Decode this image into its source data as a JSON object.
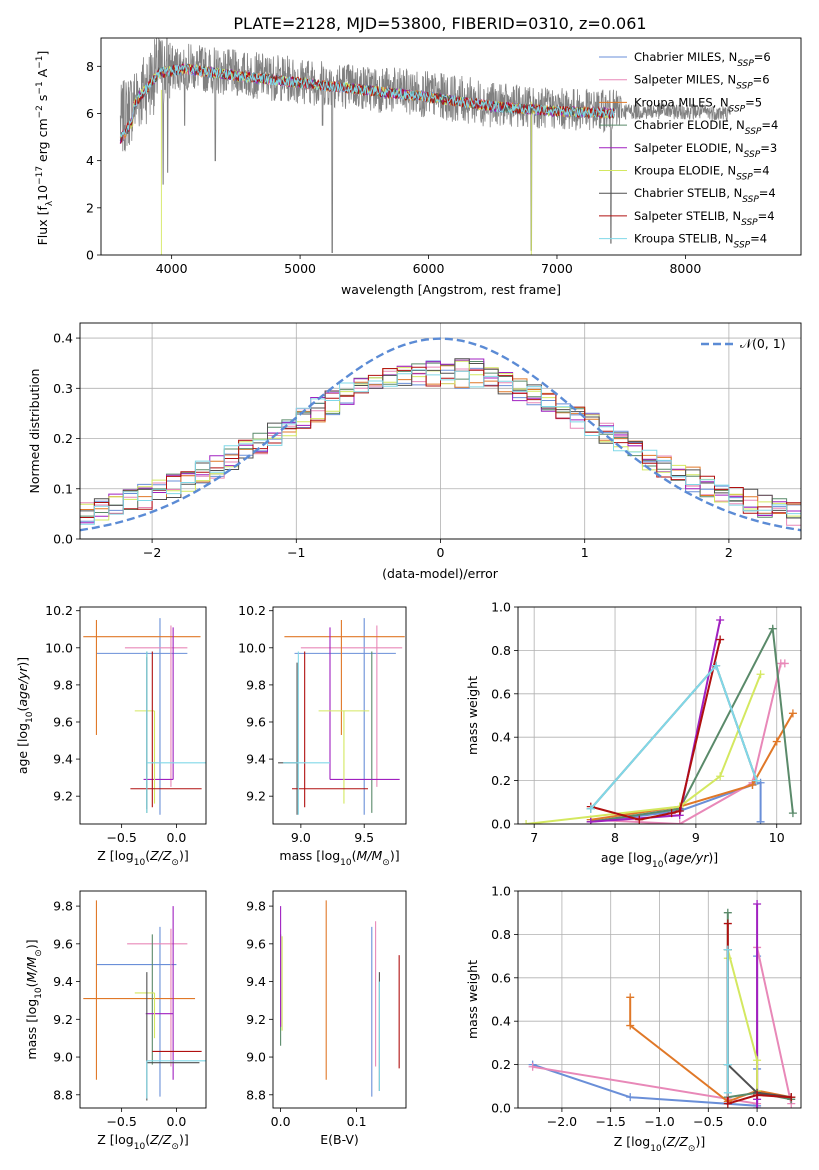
{
  "colors": {
    "Chabrier MILES": "#6a8fd8",
    "Salpeter MILES": "#e888b8",
    "Kroupa MILES": "#e07828",
    "Chabrier ELODIE": "#5a8a6a",
    "Salpeter ELODIE": "#a020c0",
    "Kroupa ELODIE": "#d4e860",
    "Chabrier STELIB": "#505050",
    "Salpeter STELIB": "#b01010",
    "Kroupa STELIB": "#80d8e8",
    "data": "#808080",
    "normal": "#5b8bd5"
  },
  "title": "PLATE=2128, MJD=53800, FIBERID=0310, z=0.061",
  "chart_data": [
    {
      "id": "spectrum",
      "type": "line",
      "xlabel": "wavelength [Angstrom, rest frame]",
      "ylabel": "Flux [f",
      "xlim": [
        3450,
        8900
      ],
      "ylim": [
        0,
        9.2
      ],
      "xticks": [
        4000,
        5000,
        6000,
        7000,
        8000
      ],
      "yticks": [
        0,
        2,
        4,
        6,
        8
      ],
      "data_range": [
        3600,
        8350
      ],
      "model_range": [
        3600,
        7450
      ],
      "continuum": [
        [
          3600,
          5.6
        ],
        [
          3750,
          6.8
        ],
        [
          3900,
          7.8
        ],
        [
          4100,
          8.0
        ],
        [
          4500,
          7.7
        ],
        [
          5000,
          7.4
        ],
        [
          5500,
          7.1
        ],
        [
          6000,
          6.8
        ],
        [
          6500,
          6.4
        ],
        [
          7000,
          6.2
        ],
        [
          7500,
          6.1
        ],
        [
          8000,
          6.1
        ],
        [
          8350,
          6.0
        ]
      ],
      "absorption_features": [
        [
          3934,
          3.0
        ],
        [
          3968,
          3.5
        ],
        [
          4102,
          5.5
        ],
        [
          4340,
          4.0
        ],
        [
          5175,
          5.5
        ],
        [
          5250,
          0.1
        ],
        [
          6800,
          0.2
        ],
        [
          7420,
          0.5
        ]
      ],
      "legend": [
        {
          "name": "Chabrier MILES",
          "nssp": "6"
        },
        {
          "name": "Salpeter MILES",
          "nssp": "6"
        },
        {
          "name": "Kroupa MILES",
          "nssp": "5"
        },
        {
          "name": "Chabrier ELODIE",
          "nssp": "4"
        },
        {
          "name": "Salpeter ELODIE",
          "nssp": "3"
        },
        {
          "name": "Kroupa ELODIE",
          "nssp": "4"
        },
        {
          "name": "Chabrier STELIB",
          "nssp": "4"
        },
        {
          "name": "Salpeter STELIB",
          "nssp": "4"
        },
        {
          "name": "Kroupa STELIB",
          "nssp": "4"
        }
      ]
    },
    {
      "id": "residuals",
      "type": "histogram",
      "xlabel": "(data-model)/error",
      "ylabel": "Normed distribution",
      "xlim": [
        -2.5,
        2.5
      ],
      "ylim": [
        0,
        0.43
      ],
      "xticks": [
        -2,
        -1,
        0,
        1,
        2
      ],
      "yticks": [
        0.0,
        0.1,
        0.2,
        0.3,
        0.4
      ],
      "legend": "𝒩(0, 1)",
      "grid": true
    },
    {
      "id": "age_vs_Z",
      "type": "errorbar",
      "xlabel": "Z [log",
      "ylabel": "age  [log",
      "xlim": [
        -0.88,
        0.27
      ],
      "ylim": [
        9.05,
        10.22
      ],
      "xticks": [
        -0.5,
        0.0
      ],
      "yticks": [
        9.2,
        9.4,
        9.6,
        9.8,
        10.0,
        10.2
      ],
      "points": [
        {
          "model": "Chabrier MILES",
          "x": -0.15,
          "xerr": [
            0.58,
            0.25
          ],
          "y": 9.97,
          "yerr": [
            0.87,
            0.19
          ]
        },
        {
          "model": "Salpeter MILES",
          "x": -0.05,
          "xerr": [
            0.42,
            0.15
          ],
          "y": 10.0,
          "yerr": [
            0.75,
            0.12
          ]
        },
        {
          "model": "Kroupa MILES",
          "x": -0.73,
          "xerr": [
            0.12,
            0.95
          ],
          "y": 10.06,
          "yerr": [
            0.53,
            0.09
          ]
        },
        {
          "model": "Chabrier ELODIE",
          "x": -0.27,
          "xerr": [
            0.0,
            0.0
          ],
          "y": 9.38,
          "yerr": [
            0.27,
            0.6
          ]
        },
        {
          "model": "Salpeter ELODIE",
          "x": -0.03,
          "xerr": [
            0.27,
            0.0
          ],
          "y": 9.29,
          "yerr": [
            0.0,
            0.82
          ]
        },
        {
          "model": "Kroupa ELODIE",
          "x": -0.2,
          "xerr": [
            0.18,
            0.0
          ],
          "y": 9.66,
          "yerr": [
            0.5,
            0.0
          ]
        },
        {
          "model": "Chabrier STELIB",
          "x": -0.27,
          "xerr": [
            0.0,
            0.0
          ],
          "y": 9.38,
          "yerr": [
            0.25,
            0.57
          ]
        },
        {
          "model": "Salpeter STELIB",
          "x": -0.22,
          "xerr": [
            0.2,
            0.45
          ],
          "y": 9.24,
          "yerr": [
            0.1,
            0.74
          ]
        },
        {
          "model": "Kroupa STELIB",
          "x": -0.27,
          "xerr": [
            0.0,
            0.55
          ],
          "y": 9.38,
          "yerr": [
            0.27,
            0.6
          ]
        }
      ]
    },
    {
      "id": "age_vs_mass",
      "type": "errorbar",
      "xlabel": "mass [log",
      "ylabel": "",
      "xlim": [
        8.78,
        9.83
      ],
      "ylim": [
        9.05,
        10.22
      ],
      "xticks": [
        9.0,
        9.5
      ],
      "yticks": [
        9.2,
        9.4,
        9.6,
        9.8,
        10.0,
        10.2
      ],
      "points": [
        {
          "model": "Chabrier MILES",
          "x": 9.5,
          "xerr": [
            0.55,
            0.25
          ],
          "y": 9.97,
          "yerr": [
            0.87,
            0.19
          ]
        },
        {
          "model": "Salpeter MILES",
          "x": 9.6,
          "xerr": [
            0.6,
            0.2
          ],
          "y": 10.0,
          "yerr": [
            0.75,
            0.12
          ]
        },
        {
          "model": "Kroupa MILES",
          "x": 9.32,
          "xerr": [
            0.45,
            0.5
          ],
          "y": 10.06,
          "yerr": [
            0.53,
            0.09
          ]
        },
        {
          "model": "Chabrier ELODIE",
          "x": 9.56,
          "xerr": [
            0.0,
            0.0
          ],
          "y": 9.38,
          "yerr": [
            0.27,
            0.6
          ]
        },
        {
          "model": "Salpeter ELODIE",
          "x": 9.23,
          "xerr": [
            0.0,
            0.55
          ],
          "y": 9.29,
          "yerr": [
            0.0,
            0.82
          ]
        },
        {
          "model": "Kroupa ELODIE",
          "x": 9.34,
          "xerr": [
            0.2,
            0.2
          ],
          "y": 9.66,
          "yerr": [
            0.5,
            0.0
          ]
        },
        {
          "model": "Chabrier STELIB",
          "x": 8.97,
          "xerr": [
            0.15,
            0.0
          ],
          "y": 9.38,
          "yerr": [
            0.28,
            0.54
          ]
        },
        {
          "model": "Salpeter STELIB",
          "x": 9.03,
          "xerr": [
            0.1,
            0.5
          ],
          "y": 9.24,
          "yerr": [
            0.1,
            0.74
          ]
        },
        {
          "model": "Kroupa STELIB",
          "x": 8.98,
          "xerr": [
            0.12,
            0.25
          ],
          "y": 9.38,
          "yerr": [
            0.28,
            0.6
          ]
        }
      ]
    },
    {
      "id": "weight_vs_age",
      "type": "line",
      "xlabel": "age  [log",
      "ylabel": "mass weight",
      "xlim": [
        6.8,
        10.3
      ],
      "ylim": [
        0,
        1.0
      ],
      "xticks": [
        7,
        8,
        9,
        10
      ],
      "yticks": [
        0.0,
        0.2,
        0.4,
        0.6,
        0.8,
        1.0
      ],
      "grid": true,
      "series": [
        {
          "model": "Chabrier MILES",
          "x": [
            7.7,
            8.8,
            9.7,
            9.8,
            9.8
          ],
          "y": [
            0.01,
            0.06,
            0.18,
            0.19,
            0.01
          ]
        },
        {
          "model": "Salpeter MILES",
          "x": [
            7.7,
            8.8,
            9.7,
            10.05,
            10.1
          ],
          "y": [
            0.02,
            0.0,
            0.19,
            0.74,
            0.74
          ]
        },
        {
          "model": "Kroupa MILES",
          "x": [
            7.7,
            8.8,
            9.7,
            10.0,
            10.2
          ],
          "y": [
            0.02,
            0.08,
            0.18,
            0.38,
            0.51
          ]
        },
        {
          "model": "Chabrier ELODIE",
          "x": [
            7.7,
            8.8,
            9.95,
            10.2
          ],
          "y": [
            0.01,
            0.07,
            0.9,
            0.05
          ]
        },
        {
          "model": "Salpeter ELODIE",
          "x": [
            7.7,
            8.8,
            9.3
          ],
          "y": [
            0.01,
            0.04,
            0.94
          ]
        },
        {
          "model": "Kroupa ELODIE",
          "x": [
            6.9,
            8.8,
            9.3,
            9.8
          ],
          "y": [
            0.0,
            0.08,
            0.22,
            0.69
          ]
        },
        {
          "model": "Chabrier STELIB",
          "x": [
            7.7,
            9.25,
            9.75
          ],
          "y": [
            0.07,
            0.73,
            0.2
          ]
        },
        {
          "model": "Salpeter STELIB",
          "x": [
            7.7,
            8.3,
            8.7,
            8.8,
            9.3
          ],
          "y": [
            0.08,
            0.02,
            0.05,
            0.06,
            0.85
          ]
        },
        {
          "model": "Kroupa STELIB",
          "x": [
            7.7,
            9.25,
            9.75
          ],
          "y": [
            0.07,
            0.73,
            0.2
          ]
        }
      ]
    },
    {
      "id": "mass_vs_Z",
      "type": "errorbar",
      "xlabel": "Z [log",
      "ylabel": "mass [log",
      "xlim": [
        -0.88,
        0.27
      ],
      "ylim": [
        8.73,
        9.88
      ],
      "xticks": [
        -0.5,
        0.0
      ],
      "yticks": [
        8.8,
        9.0,
        9.2,
        9.4,
        9.6,
        9.8
      ],
      "points": [
        {
          "model": "Chabrier MILES",
          "x": -0.15,
          "xerr": [
            0.58,
            0.15
          ],
          "y": 9.49,
          "yerr": [
            0.7,
            0.2
          ]
        },
        {
          "model": "Salpeter MILES",
          "x": -0.05,
          "xerr": [
            0.4,
            0.15
          ],
          "y": 9.6,
          "yerr": [
            0.65,
            0.08
          ]
        },
        {
          "model": "Kroupa MILES",
          "x": -0.73,
          "xerr": [
            0.12,
            0.9
          ],
          "y": 9.31,
          "yerr": [
            0.43,
            0.52
          ]
        },
        {
          "model": "Chabrier ELODIE",
          "x": -0.22,
          "xerr": [
            0.0,
            0.0
          ],
          "y": 9.56,
          "yerr": [
            0.6,
            0.09
          ]
        },
        {
          "model": "Salpeter ELODIE",
          "x": -0.03,
          "xerr": [
            0.25,
            0.0
          ],
          "y": 9.23,
          "yerr": [
            0.35,
            0.57
          ]
        },
        {
          "model": "Kroupa ELODIE",
          "x": -0.2,
          "xerr": [
            0.18,
            0.0
          ],
          "y": 9.34,
          "yerr": [
            0.24,
            0.0
          ]
        },
        {
          "model": "Chabrier STELIB",
          "x": -0.27,
          "xerr": [
            0.0,
            0.48
          ],
          "y": 8.97,
          "yerr": [
            0.2,
            0.48
          ]
        },
        {
          "model": "Salpeter STELIB",
          "x": -0.22,
          "xerr": [
            0.0,
            0.45
          ],
          "y": 9.03,
          "yerr": [
            0.0,
            0.0
          ]
        },
        {
          "model": "Kroupa STELIB",
          "x": -0.27,
          "xerr": [
            0.0,
            0.55
          ],
          "y": 8.98,
          "yerr": [
            0.2,
            0.0
          ]
        }
      ]
    },
    {
      "id": "mass_vs_EBV",
      "type": "errorbar",
      "xlabel": "E(B-V)",
      "ylabel": "",
      "xlim": [
        -0.01,
        0.165
      ],
      "ylim": [
        8.73,
        9.88
      ],
      "xticks": [
        0.0,
        0.1
      ],
      "yticks": [
        8.8,
        9.0,
        9.2,
        9.4,
        9.6,
        9.8
      ],
      "points": [
        {
          "model": "Chabrier MILES",
          "x": 0.12,
          "y": 9.49,
          "yerr": [
            0.7,
            0.2
          ]
        },
        {
          "model": "Salpeter MILES",
          "x": 0.125,
          "y": 9.6,
          "yerr": [
            0.65,
            0.12
          ]
        },
        {
          "model": "Kroupa MILES",
          "x": 0.06,
          "y": 9.31,
          "yerr": [
            0.43,
            0.52
          ]
        },
        {
          "model": "Chabrier ELODIE",
          "x": 0.0,
          "y": 9.56,
          "yerr": [
            0.5,
            0.09
          ]
        },
        {
          "model": "Salpeter ELODIE",
          "x": 0.0,
          "y": 9.23,
          "yerr": [
            0.07,
            0.57
          ]
        },
        {
          "model": "Kroupa ELODIE",
          "x": 0.002,
          "y": 9.34,
          "yerr": [
            0.2,
            0.3
          ]
        },
        {
          "model": "Chabrier STELIB",
          "x": 0.13,
          "y": 8.97,
          "yerr": [
            0.15,
            0.48
          ]
        },
        {
          "model": "Salpeter STELIB",
          "x": 0.156,
          "y": 9.03,
          "yerr": [
            0.09,
            0.51
          ]
        },
        {
          "model": "Kroupa STELIB",
          "x": 0.13,
          "y": 8.98,
          "yerr": [
            0.16,
            0.42
          ]
        }
      ]
    },
    {
      "id": "weight_vs_Z",
      "type": "line",
      "xlabel": "Z [log",
      "ylabel": "mass weight",
      "xlim": [
        -2.45,
        0.45
      ],
      "ylim": [
        0,
        1.0
      ],
      "xticks": [
        -2.0,
        -1.5,
        -1.0,
        -0.5,
        0.0
      ],
      "yticks": [
        0.0,
        0.2,
        0.4,
        0.6,
        0.8,
        1.0
      ],
      "grid": true,
      "series": [
        {
          "model": "Chabrier MILES",
          "x": [
            -2.3,
            -1.3,
            0.0,
            0.0,
            0.0
          ],
          "y": [
            0.2,
            0.05,
            0.01,
            0.7,
            0.18
          ]
        },
        {
          "model": "Salpeter MILES",
          "x": [
            -2.3,
            0.0,
            0.0,
            0.35,
            0.35
          ],
          "y": [
            0.19,
            0.02,
            0.74,
            0.02,
            0.05
          ]
        },
        {
          "model": "Kroupa MILES",
          "x": [
            -1.3,
            -1.3,
            -0.3,
            0.0,
            0.35
          ],
          "y": [
            0.51,
            0.38,
            0.03,
            0.08,
            0.05
          ]
        },
        {
          "model": "Chabrier ELODIE",
          "x": [
            -0.3,
            -0.3,
            0.0,
            0.35
          ],
          "y": [
            0.9,
            0.05,
            0.07,
            0.04
          ]
        },
        {
          "model": "Salpeter ELODIE",
          "x": [
            0.0,
            0.0,
            0.0
          ],
          "y": [
            0.94,
            0.04,
            0.0
          ]
        },
        {
          "model": "Kroupa ELODIE",
          "x": [
            -0.3,
            -0.3,
            0.0,
            0.0
          ],
          "y": [
            0.69,
            0.73,
            0.22,
            0.08
          ]
        },
        {
          "model": "Chabrier STELIB",
          "x": [
            -0.3,
            -0.3,
            0.0,
            0.35
          ],
          "y": [
            0.73,
            0.2,
            0.07,
            0.05
          ]
        },
        {
          "model": "Salpeter STELIB",
          "x": [
            -0.3,
            -0.3,
            0.0,
            0.35
          ],
          "y": [
            0.85,
            0.02,
            0.06,
            0.05
          ]
        },
        {
          "model": "Kroupa STELIB",
          "x": [
            -0.3,
            -0.3,
            -0.3
          ],
          "y": [
            0.73,
            0.07,
            0.2
          ]
        }
      ]
    }
  ]
}
